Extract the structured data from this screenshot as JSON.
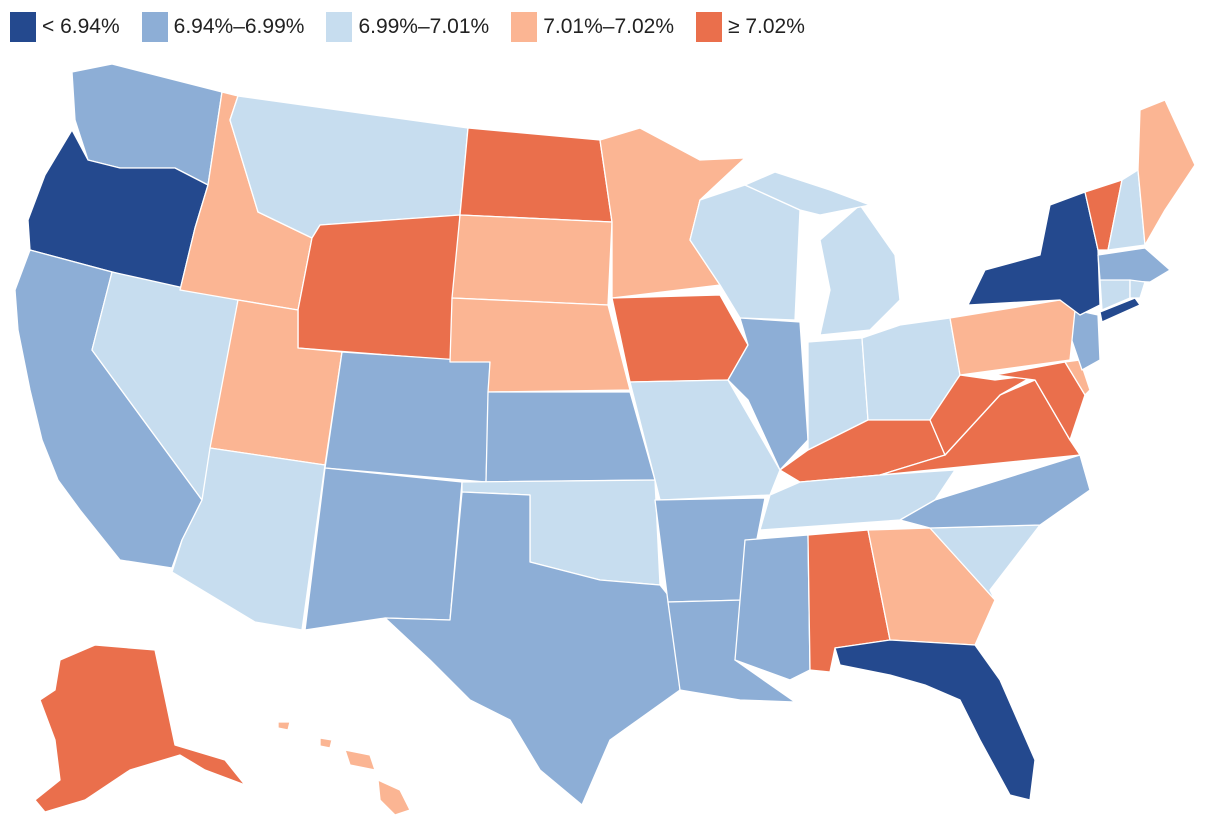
{
  "legend": {
    "items": [
      {
        "label": "< 6.94%",
        "color": "#24498e"
      },
      {
        "label": "6.94%–6.99%",
        "color": "#8daed6"
      },
      {
        "label": "6.99%–7.01%",
        "color": "#c7ddef"
      },
      {
        "label": "7.01%–7.02%",
        "color": "#fbb593"
      },
      {
        "label": "≥ 7.02%",
        "color": "#ea6f4c"
      }
    ]
  },
  "map": {
    "states": [
      {
        "name": "Washington",
        "bin": 1
      },
      {
        "name": "Oregon",
        "bin": 0
      },
      {
        "name": "California",
        "bin": 1
      },
      {
        "name": "Nevada",
        "bin": 2
      },
      {
        "name": "Idaho",
        "bin": 3
      },
      {
        "name": "Montana",
        "bin": 2
      },
      {
        "name": "Wyoming",
        "bin": 4
      },
      {
        "name": "Utah",
        "bin": 3
      },
      {
        "name": "Arizona",
        "bin": 2
      },
      {
        "name": "Colorado",
        "bin": 1
      },
      {
        "name": "New Mexico",
        "bin": 1
      },
      {
        "name": "North Dakota",
        "bin": 4
      },
      {
        "name": "South Dakota",
        "bin": 3
      },
      {
        "name": "Nebraska",
        "bin": 3
      },
      {
        "name": "Kansas",
        "bin": 1
      },
      {
        "name": "Oklahoma",
        "bin": 2
      },
      {
        "name": "Texas",
        "bin": 1
      },
      {
        "name": "Minnesota",
        "bin": 3
      },
      {
        "name": "Iowa",
        "bin": 4
      },
      {
        "name": "Missouri",
        "bin": 2
      },
      {
        "name": "Arkansas",
        "bin": 1
      },
      {
        "name": "Louisiana",
        "bin": 1
      },
      {
        "name": "Wisconsin",
        "bin": 2
      },
      {
        "name": "Illinois",
        "bin": 1
      },
      {
        "name": "Michigan",
        "bin": 2
      },
      {
        "name": "Indiana",
        "bin": 2
      },
      {
        "name": "Ohio",
        "bin": 2
      },
      {
        "name": "Kentucky",
        "bin": 4
      },
      {
        "name": "Tennessee",
        "bin": 2
      },
      {
        "name": "Mississippi",
        "bin": 1
      },
      {
        "name": "Alabama",
        "bin": 4
      },
      {
        "name": "Georgia",
        "bin": 3
      },
      {
        "name": "Florida",
        "bin": 0
      },
      {
        "name": "South Carolina",
        "bin": 2
      },
      {
        "name": "North Carolina",
        "bin": 1
      },
      {
        "name": "Virginia",
        "bin": 4
      },
      {
        "name": "West Virginia",
        "bin": 4
      },
      {
        "name": "Maryland",
        "bin": 4
      },
      {
        "name": "Delaware",
        "bin": 3
      },
      {
        "name": "New Jersey",
        "bin": 1
      },
      {
        "name": "Pennsylvania",
        "bin": 3
      },
      {
        "name": "New York",
        "bin": 0
      },
      {
        "name": "Vermont",
        "bin": 4
      },
      {
        "name": "New Hampshire",
        "bin": 2
      },
      {
        "name": "Maine",
        "bin": 3
      },
      {
        "name": "Massachusetts",
        "bin": 1
      },
      {
        "name": "Connecticut",
        "bin": 2
      },
      {
        "name": "Rhode Island",
        "bin": 2
      },
      {
        "name": "Alaska",
        "bin": 4
      },
      {
        "name": "Hawaii",
        "bin": 3
      }
    ]
  }
}
